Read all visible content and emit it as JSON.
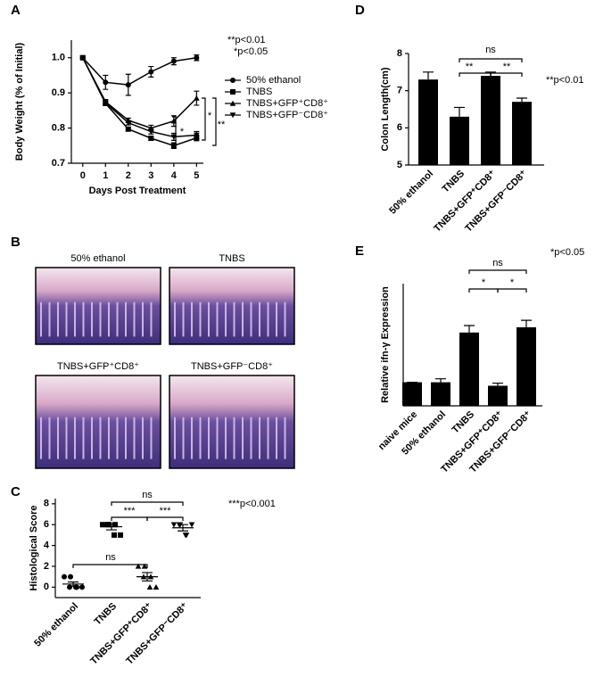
{
  "panel_labels": [
    "A",
    "B",
    "C",
    "D",
    "E"
  ],
  "chart_data": [
    {
      "type": "line",
      "ylabel": "Body Weight (% of Initial)",
      "xlabel": "Days Post Treatment",
      "x": [
        0,
        1,
        2,
        3,
        4,
        5
      ],
      "xlim": [
        -0.5,
        5.3
      ],
      "xticks": [
        0,
        1,
        2,
        3,
        4,
        5
      ],
      "ylim": [
        0.7,
        1.05
      ],
      "yticks": [
        0.7,
        0.8,
        0.9,
        {
          "value": 1,
          "label": "1.0"
        }
      ],
      "annotations": [
        "**p<0.01",
        "*p<0.05"
      ],
      "brackets": [
        "*",
        "*",
        "**"
      ],
      "series": [
        {
          "name": "50% ethanol",
          "color": "#000000",
          "marker": "circle",
          "values": [
            1.0,
            0.93,
            0.923,
            0.96,
            0.99,
            1.0
          ],
          "errors": [
            0,
            0.02,
            0.03,
            0.015,
            0.01,
            0.008
          ]
        },
        {
          "name": "TNBS",
          "color": "#000000",
          "marker": "square",
          "values": [
            1.0,
            0.87,
            0.797,
            0.771,
            0.75,
            0.772
          ],
          "errors": [
            0,
            0.005,
            0.005,
            0.006,
            0.008,
            0.008
          ]
        },
        {
          "name": "TNBS+GFP⁺CD8⁺",
          "color": "#000000",
          "marker": "triangle-up",
          "values": [
            1.0,
            0.875,
            0.822,
            0.8,
            0.82,
            0.885
          ],
          "errors": [
            0,
            0.006,
            0.006,
            0.008,
            0.015,
            0.02
          ]
        },
        {
          "name": "TNBS+GFP⁻CD8⁺",
          "color": "#000000",
          "marker": "triangle-down",
          "values": [
            1.0,
            0.872,
            0.815,
            0.79,
            0.775,
            0.78
          ],
          "errors": [
            0,
            0.006,
            0.006,
            0.007,
            0.01,
            0.01
          ]
        }
      ]
    },
    {
      "type": "scatter",
      "ylabel": "Histological Score",
      "categories": [
        "50% ethanol",
        "TNBS",
        "TNBS+GFP⁺CD8⁺",
        "TNBS+GFP⁻CD8⁺"
      ],
      "markers": [
        "circle",
        "square",
        "triangle-up",
        "triangle-down"
      ],
      "points": [
        [
          1,
          1,
          0,
          0,
          0,
          0
        ],
        [
          6,
          6,
          6,
          6,
          5,
          5
        ],
        [
          2,
          2,
          1,
          1,
          0,
          0
        ],
        [
          6,
          6,
          5,
          6,
          5,
          6
        ]
      ],
      "means": [
        0.3,
        5.8,
        1.0,
        5.7
      ],
      "errors": [
        0.2,
        0.3,
        0.4,
        0.3
      ],
      "ylim": [
        -1,
        8.5
      ],
      "yticks": [
        0,
        2,
        4,
        6,
        8
      ],
      "annotations": [
        "***p<0.001"
      ],
      "brackets": [
        "ns",
        "***",
        "***",
        "ns"
      ]
    },
    {
      "type": "bar",
      "ylabel": "Colon Length(cm)",
      "color": "#000000",
      "categories": [
        "50% ethanol",
        "TNBS",
        "TNBS+GFP⁺CD8⁺",
        "TNBS+GFP⁻CD8⁺"
      ],
      "values": [
        7.3,
        6.3,
        7.4,
        6.7
      ],
      "errors": [
        0.2,
        0.25,
        0.1,
        0.1
      ],
      "ylim": [
        5,
        8
      ],
      "yticks": [
        5,
        6,
        7,
        8
      ],
      "annotations": [
        "**p<0.01"
      ],
      "brackets": [
        "ns",
        "**",
        "**"
      ]
    },
    {
      "type": "bar",
      "ylabel": "Relative ifn-γ Expression",
      "color": "#000000",
      "categories": [
        "naive mice",
        "50% ethanol",
        "TNBS",
        "TNBS+GFP⁺CD8⁺",
        "TNBS+GFP⁻CD8⁺"
      ],
      "values": [
        1.35,
        1.35,
        4.2,
        1.15,
        4.5
      ],
      "errors": [
        0,
        0.2,
        0.4,
        0.15,
        0.4
      ],
      "ylim": [
        0,
        7
      ],
      "annotations": [
        "*p<0.05"
      ],
      "brackets": [
        "ns",
        "*",
        "*"
      ]
    }
  ],
  "histology": {
    "panels": [
      {
        "title": "50% ethanol"
      },
      {
        "title": "TNBS"
      },
      {
        "title": "TNBS+GFP⁺CD8⁺"
      },
      {
        "title": "TNBS+GFP⁻CD8⁺"
      }
    ]
  }
}
